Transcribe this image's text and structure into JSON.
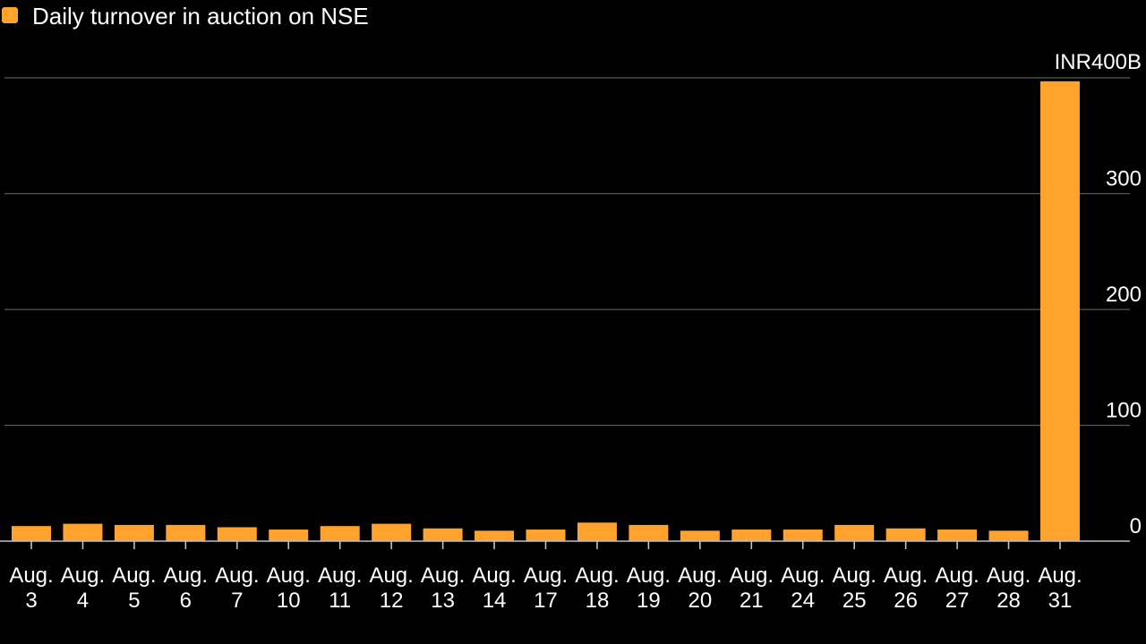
{
  "chart_data": {
    "type": "bar",
    "legend": {
      "label": "Daily turnover in auction on NSE",
      "color": "#FFA22E",
      "placement": "top-left"
    },
    "categories": [
      [
        "Aug.",
        "3"
      ],
      [
        "Aug.",
        "4"
      ],
      [
        "Aug.",
        "5"
      ],
      [
        "Aug.",
        "6"
      ],
      [
        "Aug.",
        "7"
      ],
      [
        "Aug.",
        "10"
      ],
      [
        "Aug.",
        "11"
      ],
      [
        "Aug.",
        "12"
      ],
      [
        "Aug.",
        "13"
      ],
      [
        "Aug.",
        "14"
      ],
      [
        "Aug.",
        "17"
      ],
      [
        "Aug.",
        "18"
      ],
      [
        "Aug.",
        "19"
      ],
      [
        "Aug.",
        "20"
      ],
      [
        "Aug.",
        "21"
      ],
      [
        "Aug.",
        "24"
      ],
      [
        "Aug.",
        "25"
      ],
      [
        "Aug.",
        "26"
      ],
      [
        "Aug.",
        "27"
      ],
      [
        "Aug.",
        "28"
      ],
      [
        "Aug.",
        "31"
      ]
    ],
    "values": [
      13,
      15,
      14,
      14,
      12,
      10,
      13,
      15,
      11,
      9,
      10,
      16,
      14,
      9,
      10,
      10,
      14,
      11,
      10,
      9,
      397
    ],
    "y_ticks": [
      {
        "value": 0,
        "label": "0"
      },
      {
        "value": 100,
        "label": "100"
      },
      {
        "value": 200,
        "label": "200"
      },
      {
        "value": 300,
        "label": "300"
      },
      {
        "value": 400,
        "label": "INR400B"
      }
    ],
    "ylim": [
      0,
      400
    ],
    "y_axis_side": "right",
    "grid": true
  }
}
